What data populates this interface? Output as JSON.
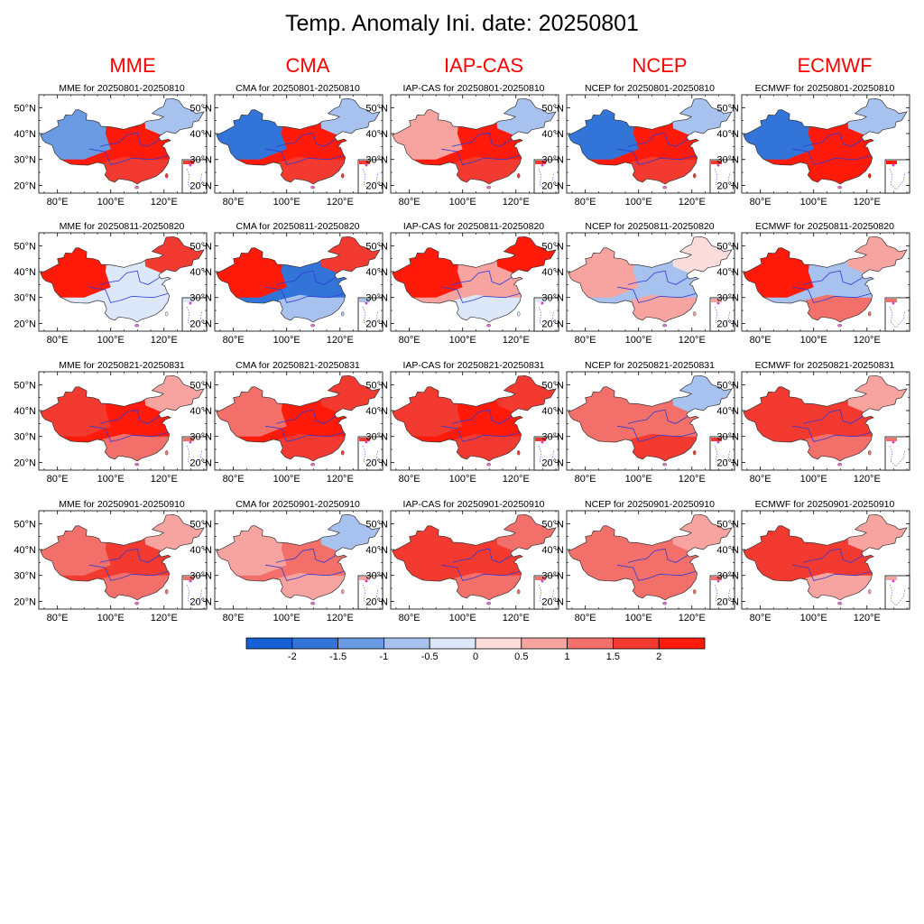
{
  "title": "Temp. Anomaly Ini. date: 20250801",
  "models": [
    "MME",
    "CMA",
    "IAP-CAS",
    "NCEP",
    "ECMWF"
  ],
  "periods": [
    "20250801-20250810",
    "20250811-20250820",
    "20250821-20250831",
    "20250901-20250910"
  ],
  "panel_titles": [
    [
      "MME for 20250801-20250810",
      "CMA for 20250801-20250810",
      "IAP-CAS for 20250801-20250810",
      "NCEP for 20250801-20250810",
      "ECMWF for 20250801-20250810"
    ],
    [
      "MME for 20250811-20250820",
      "CMA for 20250811-20250820",
      "IAP-CAS for 20250811-20250820",
      "NCEP for 20250811-20250820",
      "ECMWF for 20250811-20250820"
    ],
    [
      "MME for 20250821-20250831",
      "CMA for 20250821-20250831",
      "IAP-CAS for 20250821-20250831",
      "NCEP for 20250821-20250831",
      "ECMWF for 20250821-20250831"
    ],
    [
      "MME for 20250901-20250910",
      "CMA for 20250901-20250910",
      "IAP-CAS for 20250901-20250910",
      "NCEP for 20250901-20250910",
      "ECMWF for 20250901-20250910"
    ]
  ],
  "map_axes": {
    "lon_ticks": [
      "80°E",
      "100°E",
      "120°E"
    ],
    "lat_ticks": [
      "50°N",
      "40°N",
      "30°N",
      "20°N"
    ]
  },
  "colorbar": {
    "labels": [
      "-2",
      "-1.5",
      "-1",
      "-0.5",
      "0",
      "0.5",
      "1",
      "1.5",
      "2"
    ],
    "colors": [
      "#1560d4",
      "#3274d8",
      "#6a9ae2",
      "#a7c2ef",
      "#dce8fa",
      "#fddcdc",
      "#f7a4a1",
      "#f3706a",
      "#f33a30",
      "#ff1a0a"
    ]
  },
  "anomaly_patterns": [
    [
      {
        "west": -1.5,
        "northeast": -0.8,
        "center": 2.0,
        "south": 1.8
      },
      {
        "west": -1.8,
        "northeast": -0.8,
        "center": 2.0,
        "south": 1.8
      },
      {
        "west": 0.5,
        "northeast": -0.8,
        "center": 2.0,
        "south": 1.5
      },
      {
        "west": -1.8,
        "northeast": -1.0,
        "center": 2.0,
        "south": 1.5
      },
      {
        "west": -2.0,
        "northeast": -0.8,
        "center": 2.2,
        "south": 2.2
      }
    ],
    [
      {
        "west": 2.0,
        "northeast": 1.5,
        "center": -0.5,
        "south": -0.5
      },
      {
        "west": 2.0,
        "northeast": 1.5,
        "center": -1.8,
        "south": -0.8
      },
      {
        "west": 2.2,
        "northeast": 2.2,
        "center": 0.5,
        "south": -0.3
      },
      {
        "west": 0.5,
        "northeast": 0.3,
        "center": -1.0,
        "south": 0.5
      },
      {
        "west": 2.0,
        "northeast": 0.8,
        "center": -0.8,
        "south": 1.0
      }
    ],
    [
      {
        "west": 1.5,
        "northeast": 0.8,
        "center": 2.0,
        "south": 1.2
      },
      {
        "west": 1.0,
        "northeast": 1.8,
        "center": 2.2,
        "south": 1.5
      },
      {
        "west": 1.8,
        "northeast": 1.8,
        "center": 2.0,
        "south": 1.5
      },
      {
        "west": 1.0,
        "northeast": -0.6,
        "center": 1.0,
        "south": 1.5
      },
      {
        "west": 1.8,
        "northeast": 0.8,
        "center": 1.8,
        "south": 1.0
      }
    ],
    [
      {
        "west": 1.2,
        "northeast": 0.6,
        "center": 1.5,
        "south": 1.0
      },
      {
        "west": 0.6,
        "northeast": -1.0,
        "center": 1.2,
        "south": 0.8
      },
      {
        "west": 1.5,
        "northeast": 1.0,
        "center": 1.8,
        "south": 1.2
      },
      {
        "west": 1.2,
        "northeast": 0.5,
        "center": 1.0,
        "south": 1.2
      },
      {
        "west": 1.5,
        "northeast": 0.6,
        "center": 1.5,
        "south": 0.8
      }
    ]
  ]
}
